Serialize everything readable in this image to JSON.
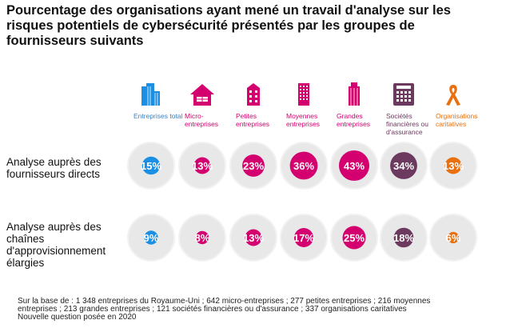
{
  "chart_data": {
    "type": "bubble-table",
    "title": "Pourcentage des organisations ayant mené un travail d'analyse sur les risques potentiels de cybersécurité présentés par les groupes de fournisseurs suivants",
    "categories": [
      {
        "label": "Entreprises total",
        "icon": "office-buildings-icon",
        "color": "#1a8fe3",
        "text_color": "#3f80c2"
      },
      {
        "label": "Micro-entreprises",
        "icon": "house-icon",
        "color": "#d4006f",
        "text_color": "#d4006f"
      },
      {
        "label": "Petites entreprises",
        "icon": "small-building-icon",
        "color": "#d4006f",
        "text_color": "#d4006f"
      },
      {
        "label": "Moyennes entreprises",
        "icon": "tower-building-icon",
        "color": "#d4006f",
        "text_color": "#d4006f"
      },
      {
        "label": "Grandes entreprises",
        "icon": "large-building-icon",
        "color": "#d4006f",
        "text_color": "#d4006f"
      },
      {
        "label": "Sociétés financières ou d'assurance",
        "icon": "calculator-icon",
        "color": "#6c3a5e",
        "text_color": "#6c3a5e"
      },
      {
        "label": "Organisations caritatives",
        "icon": "ribbon-icon",
        "color": "#e8700f",
        "text_color": "#e8700f"
      }
    ],
    "series": [
      {
        "name": "Analyse auprès des fournisseurs directs",
        "values": [
          15,
          13,
          23,
          36,
          43,
          34,
          13
        ]
      },
      {
        "name": "Analyse auprès des chaînes d'approvisionnement élargies",
        "values": [
          9,
          8,
          13,
          17,
          25,
          18,
          6
        ]
      }
    ],
    "unit": "%"
  },
  "footnote": [
    "Sur la base de : 1 348 entreprises du Royaume-Uni ; 642 micro-entreprises ; 277 petites entreprises ; 216 moyennes entreprises ; 213 grandes entreprises ; 121 sociétés financières ou d'assurance ; 337 organisations caritatives",
    "Nouvelle question posée en 2020"
  ]
}
